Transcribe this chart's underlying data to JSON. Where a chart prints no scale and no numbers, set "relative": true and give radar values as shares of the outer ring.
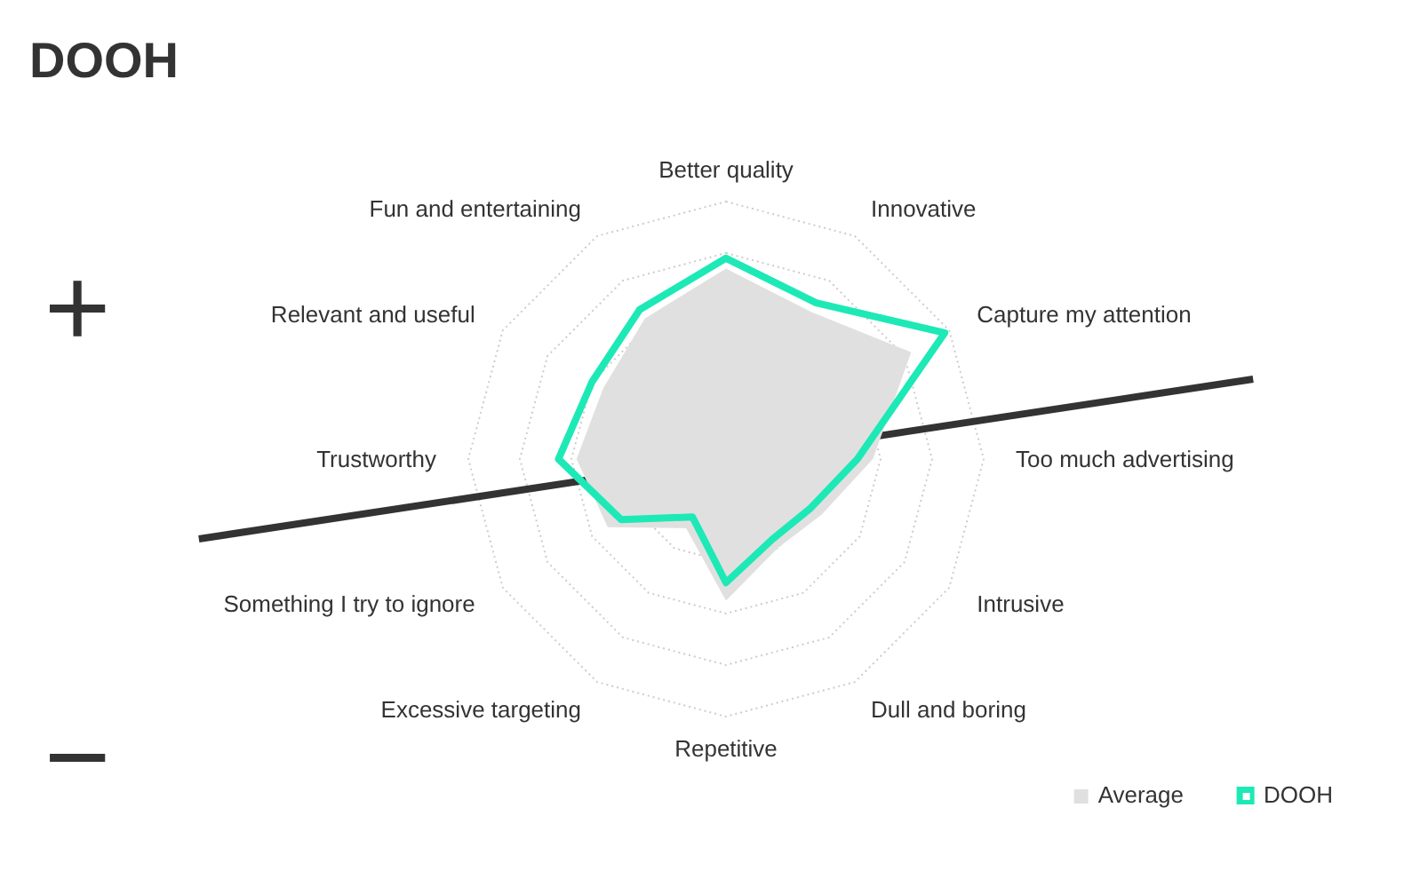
{
  "chart_data": {
    "type": "radar",
    "title": "DOOH",
    "relative": true,
    "grid": true,
    "legend": "bottom right",
    "categories": [
      "Better quality",
      "Innovative",
      "Capture my attention",
      "Too much advertising",
      "Intrusive",
      "Dull and boring",
      "Repetitive",
      "Excessive targeting",
      "Something I try to ignore",
      "Trustworthy",
      "Relevant and useful",
      "Fun and entertaining"
    ],
    "series": [
      {
        "name": "Average",
        "color": "#e0e0e0",
        "values": [
          0.74,
          0.66,
          0.83,
          0.57,
          0.43,
          0.4,
          0.55,
          0.31,
          0.53,
          0.58,
          0.55,
          0.63
        ]
      },
      {
        "name": "DOOH",
        "color": "#1de9b6",
        "values": [
          0.78,
          0.7,
          0.98,
          0.51,
          0.38,
          0.36,
          0.48,
          0.26,
          0.47,
          0.65,
          0.6,
          0.67
        ]
      }
    ],
    "annotations": [
      "+",
      "−"
    ]
  }
}
